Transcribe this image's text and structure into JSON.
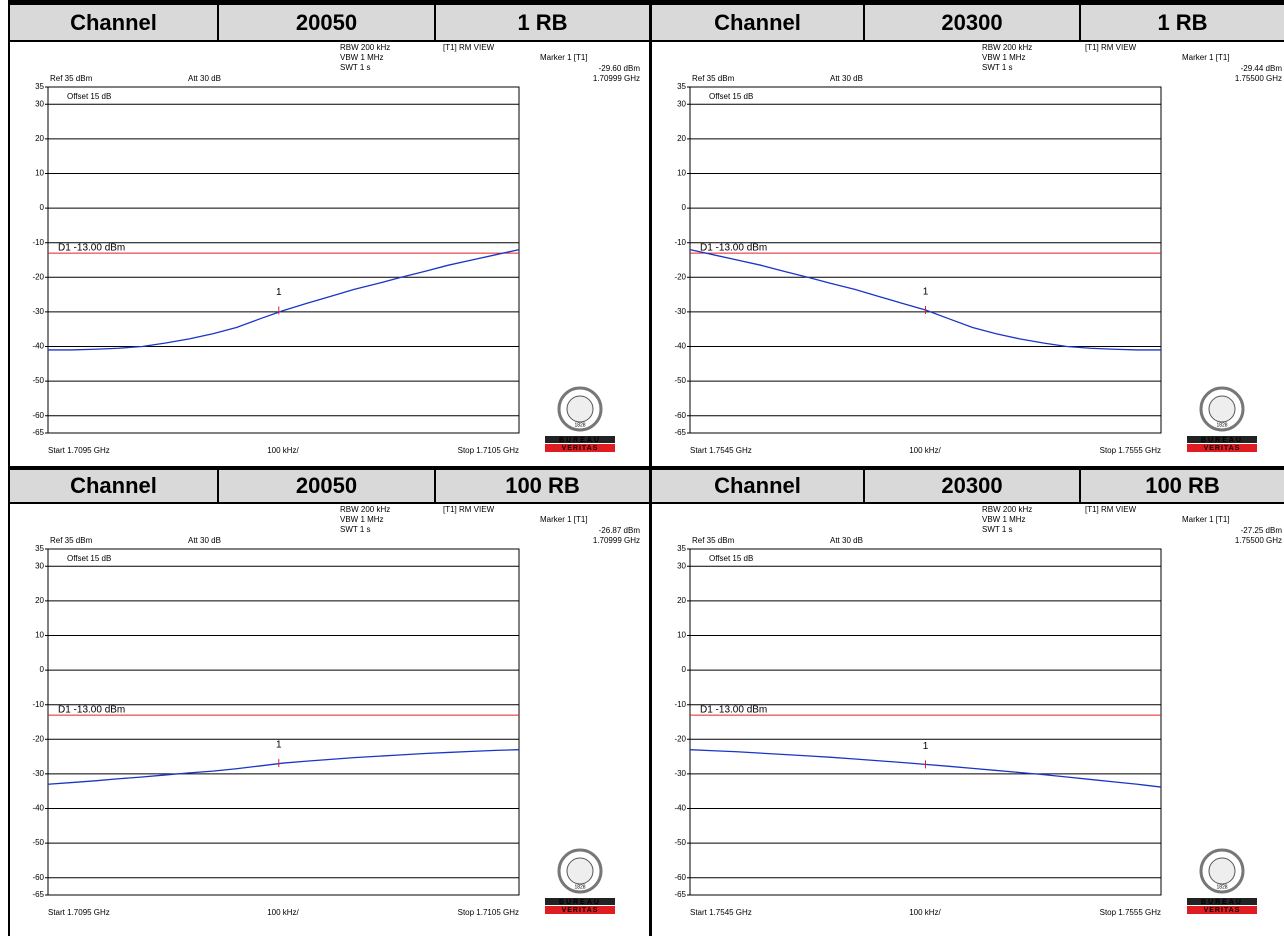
{
  "chart_data": [
    {
      "type": "line",
      "header": [
        "Channel",
        "20050",
        "1 RB"
      ],
      "settings": {
        "rbw": "RBW 200 kHz",
        "vbw": "VBW 1 MHz",
        "swt": "SWT 1 s",
        "view": "[T1] RM VIEW",
        "ref": "Ref 35 dBm",
        "att": "Att 30 dB",
        "offset": "Offset 15 dB"
      },
      "xlabels": {
        "start": "Start 1.7095 GHz",
        "span": "100 kHz/",
        "stop": "Stop 1.7105 GHz"
      },
      "xlim": [
        1.7095,
        1.7105
      ],
      "ylim": [
        -65,
        35
      ],
      "yticks": [
        35,
        30,
        20,
        10,
        0,
        -10,
        -20,
        -30,
        -40,
        -50,
        -60,
        -65
      ],
      "grid": true,
      "color": "#1a35c8",
      "x": [
        1.7095,
        1.70955,
        1.7096,
        1.70965,
        1.7097,
        1.70975,
        1.7098,
        1.70985,
        1.7099,
        1.70995,
        1.71,
        1.71005,
        1.7101,
        1.71015,
        1.7102,
        1.71025,
        1.7103,
        1.71035,
        1.7104,
        1.71045,
        1.7105
      ],
      "values": [
        -41,
        -41,
        -40.8,
        -40.5,
        -40,
        -39,
        -37.8,
        -36.3,
        -34.5,
        -32,
        -29.6,
        -27.5,
        -25.5,
        -23.5,
        -21.8,
        -20,
        -18.3,
        -16.5,
        -15,
        -13.5,
        -12
      ],
      "threshold": {
        "value": -13,
        "label": "D1 -13.00 dBm",
        "color": "#e02020"
      },
      "marker": {
        "label": "1",
        "name": "Marker 1 [T1]",
        "x": 1.70999,
        "x_label": "1.70999 GHz",
        "value": -29.6,
        "value_label": "-29.60 dBm"
      },
      "logo": {
        "top": "BUREAU",
        "bottom": "VERITAS",
        "year": "1828"
      }
    },
    {
      "type": "line",
      "header": [
        "Channel",
        "20300",
        "1 RB"
      ],
      "settings": {
        "rbw": "RBW 200 kHz",
        "vbw": "VBW 1 MHz",
        "swt": "SWT 1 s",
        "view": "[T1] RM VIEW",
        "ref": "Ref 35 dBm",
        "att": "Att 30 dB",
        "offset": "Offset 15 dB"
      },
      "xlabels": {
        "start": "Start 1.7545 GHz",
        "span": "100 kHz/",
        "stop": "Stop 1.7555 GHz"
      },
      "xlim": [
        1.7545,
        1.7555
      ],
      "ylim": [
        -65,
        35
      ],
      "yticks": [
        35,
        30,
        20,
        10,
        0,
        -10,
        -20,
        -30,
        -40,
        -50,
        -60,
        -65
      ],
      "grid": true,
      "color": "#1a35c8",
      "x": [
        1.7545,
        1.75455,
        1.7546,
        1.75465,
        1.7547,
        1.75475,
        1.7548,
        1.75485,
        1.7549,
        1.75495,
        1.755,
        1.75505,
        1.7551,
        1.75515,
        1.7552,
        1.75525,
        1.7553,
        1.75535,
        1.7554,
        1.75545,
        1.7555
      ],
      "values": [
        -12,
        -13.5,
        -15,
        -16.5,
        -18.3,
        -20,
        -21.8,
        -23.5,
        -25.5,
        -27.5,
        -29.44,
        -32,
        -34.5,
        -36.3,
        -37.8,
        -39,
        -40,
        -40.5,
        -40.8,
        -41,
        -41
      ],
      "threshold": {
        "value": -13,
        "label": "D1 -13.00 dBm",
        "color": "#e02020"
      },
      "marker": {
        "label": "1",
        "name": "Marker 1 [T1]",
        "x": 1.755,
        "x_label": "1.75500 GHz",
        "value": -29.44,
        "value_label": "-29.44 dBm"
      },
      "logo": {
        "top": "BUREAU",
        "bottom": "VERITAS",
        "year": "1828"
      }
    },
    {
      "type": "line",
      "header": [
        "Channel",
        "20050",
        "100 RB"
      ],
      "settings": {
        "rbw": "RBW 200 kHz",
        "vbw": "VBW 1 MHz",
        "swt": "SWT 1 s",
        "view": "[T1] RM VIEW",
        "ref": "Ref 35 dBm",
        "att": "Att 30 dB",
        "offset": "Offset 15 dB"
      },
      "xlabels": {
        "start": "Start 1.7095 GHz",
        "span": "100 kHz/",
        "stop": "Stop 1.7105 GHz"
      },
      "xlim": [
        1.7095,
        1.7105
      ],
      "ylim": [
        -65,
        35
      ],
      "yticks": [
        35,
        30,
        20,
        10,
        0,
        -10,
        -20,
        -30,
        -40,
        -50,
        -60,
        -65
      ],
      "grid": true,
      "color": "#1a35c8",
      "x": [
        1.7095,
        1.70955,
        1.7096,
        1.70965,
        1.7097,
        1.70975,
        1.7098,
        1.70985,
        1.7099,
        1.70995,
        1.71,
        1.71005,
        1.7101,
        1.71015,
        1.7102,
        1.71025,
        1.7103,
        1.71035,
        1.7104,
        1.71045,
        1.7105
      ],
      "values": [
        -33,
        -32.5,
        -32,
        -31.4,
        -30.9,
        -30.3,
        -29.7,
        -29.2,
        -28.5,
        -27.7,
        -26.87,
        -26.3,
        -25.8,
        -25.3,
        -24.9,
        -24.5,
        -24.1,
        -23.8,
        -23.5,
        -23.2,
        -23
      ],
      "threshold": {
        "value": -13,
        "label": "D1 -13.00 dBm",
        "color": "#e02020"
      },
      "marker": {
        "label": "1",
        "name": "Marker 1 [T1]",
        "x": 1.70999,
        "x_label": "1.70999 GHz",
        "value": -26.87,
        "value_label": "-26.87 dBm"
      },
      "logo": {
        "top": "BUREAU",
        "bottom": "VERITAS",
        "year": "1828"
      }
    },
    {
      "type": "line",
      "header": [
        "Channel",
        "20300",
        "100 RB"
      ],
      "settings": {
        "rbw": "RBW 200 kHz",
        "vbw": "VBW 1 MHz",
        "swt": "SWT 1 s",
        "view": "[T1] RM VIEW",
        "ref": "Ref 35 dBm",
        "att": "Att 30 dB",
        "offset": "Offset 15 dB"
      },
      "xlabels": {
        "start": "Start 1.7545 GHz",
        "span": "100 kHz/",
        "stop": "Stop 1.7555 GHz"
      },
      "xlim": [
        1.7545,
        1.7555
      ],
      "ylim": [
        -65,
        35
      ],
      "yticks": [
        35,
        30,
        20,
        10,
        0,
        -10,
        -20,
        -30,
        -40,
        -50,
        -60,
        -65
      ],
      "grid": true,
      "color": "#1a35c8",
      "x": [
        1.7545,
        1.75455,
        1.7546,
        1.75465,
        1.7547,
        1.75475,
        1.7548,
        1.75485,
        1.7549,
        1.75495,
        1.755,
        1.75505,
        1.7551,
        1.75515,
        1.7552,
        1.75525,
        1.7553,
        1.75535,
        1.7554,
        1.75545,
        1.7555
      ],
      "values": [
        -23,
        -23.3,
        -23.6,
        -24,
        -24.4,
        -24.8,
        -25.2,
        -25.7,
        -26.2,
        -26.7,
        -27.25,
        -27.8,
        -28.4,
        -29,
        -29.6,
        -30.2,
        -30.9,
        -31.6,
        -32.3,
        -33,
        -33.8
      ],
      "threshold": {
        "value": -13,
        "label": "D1 -13.00 dBm",
        "color": "#e02020"
      },
      "marker": {
        "label": "1",
        "name": "Marker 1 [T1]",
        "x": 1.755,
        "x_label": "1.75500 GHz",
        "value": -27.25,
        "value_label": "-27.25 dBm"
      },
      "logo": {
        "top": "BUREAU",
        "bottom": "VERITAS",
        "year": "1828"
      }
    }
  ]
}
